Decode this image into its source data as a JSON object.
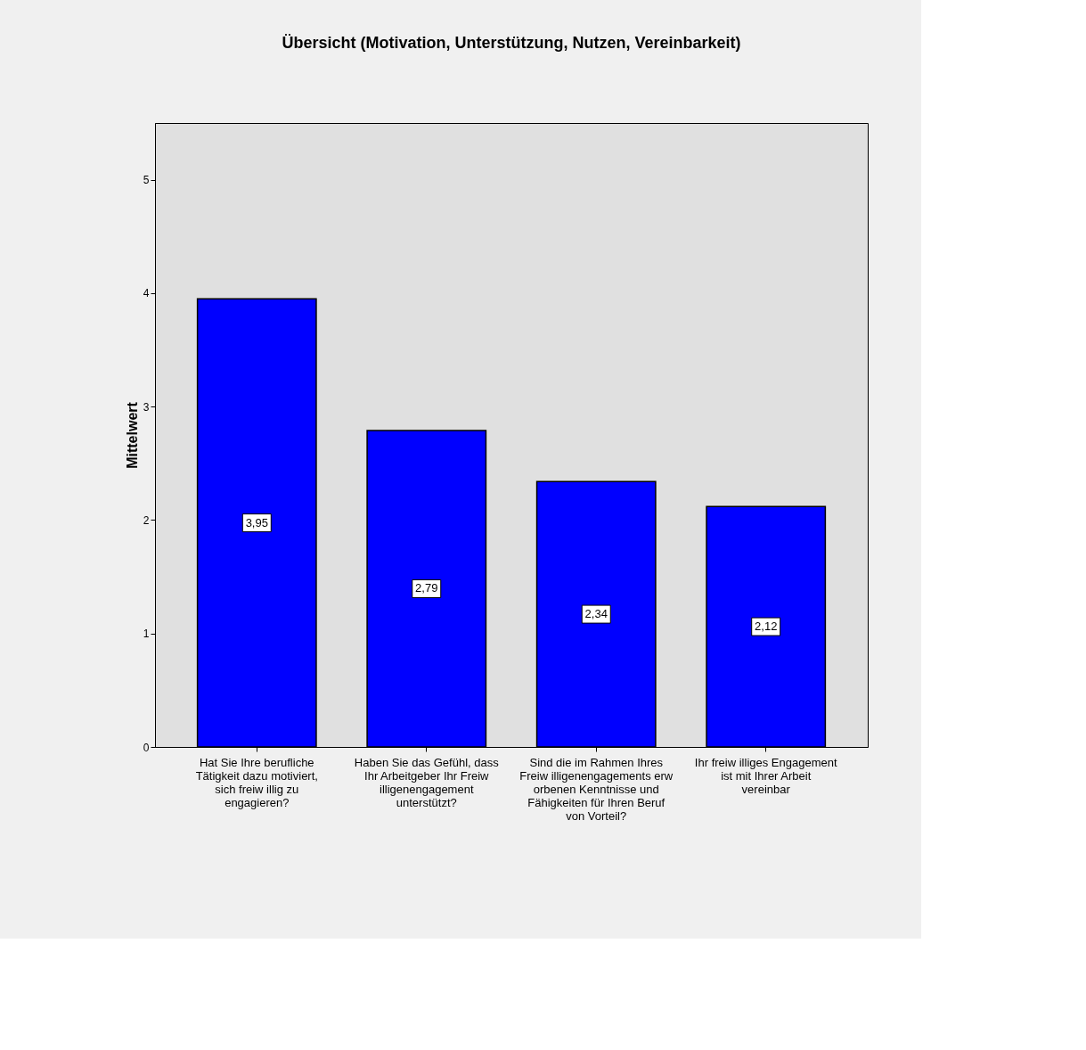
{
  "chart_data": {
    "type": "bar",
    "title": "Übersicht (Motivation, Unterstützung, Nutzen, Vereinbarkeit)",
    "ylabel": "Mittelwert",
    "categories": [
      "Hat Sie Ihre berufliche Tätigkeit dazu motiviert, sich freiw illig zu engagieren?",
      "Haben Sie das Gefühl, dass Ihr Arbeitgeber Ihr Freiw illigenengagement unterstützt?",
      "Sind die im Rahmen Ihres Freiw illigenengagements erw orbenen Kenntnisse und Fähigkeiten für Ihren Beruf von Vorteil?",
      "Ihr freiw illiges Engagement ist mit Ihrer Arbeit vereinbar"
    ],
    "values": [
      3.95,
      2.79,
      2.34,
      2.12
    ],
    "value_labels": [
      "3,95",
      "2,79",
      "2,34",
      "2,12"
    ],
    "color": "#0000ff",
    "ylim": [
      0,
      5.5
    ],
    "yticks": [
      0,
      1,
      2,
      3,
      4,
      5
    ],
    "grid": false
  }
}
